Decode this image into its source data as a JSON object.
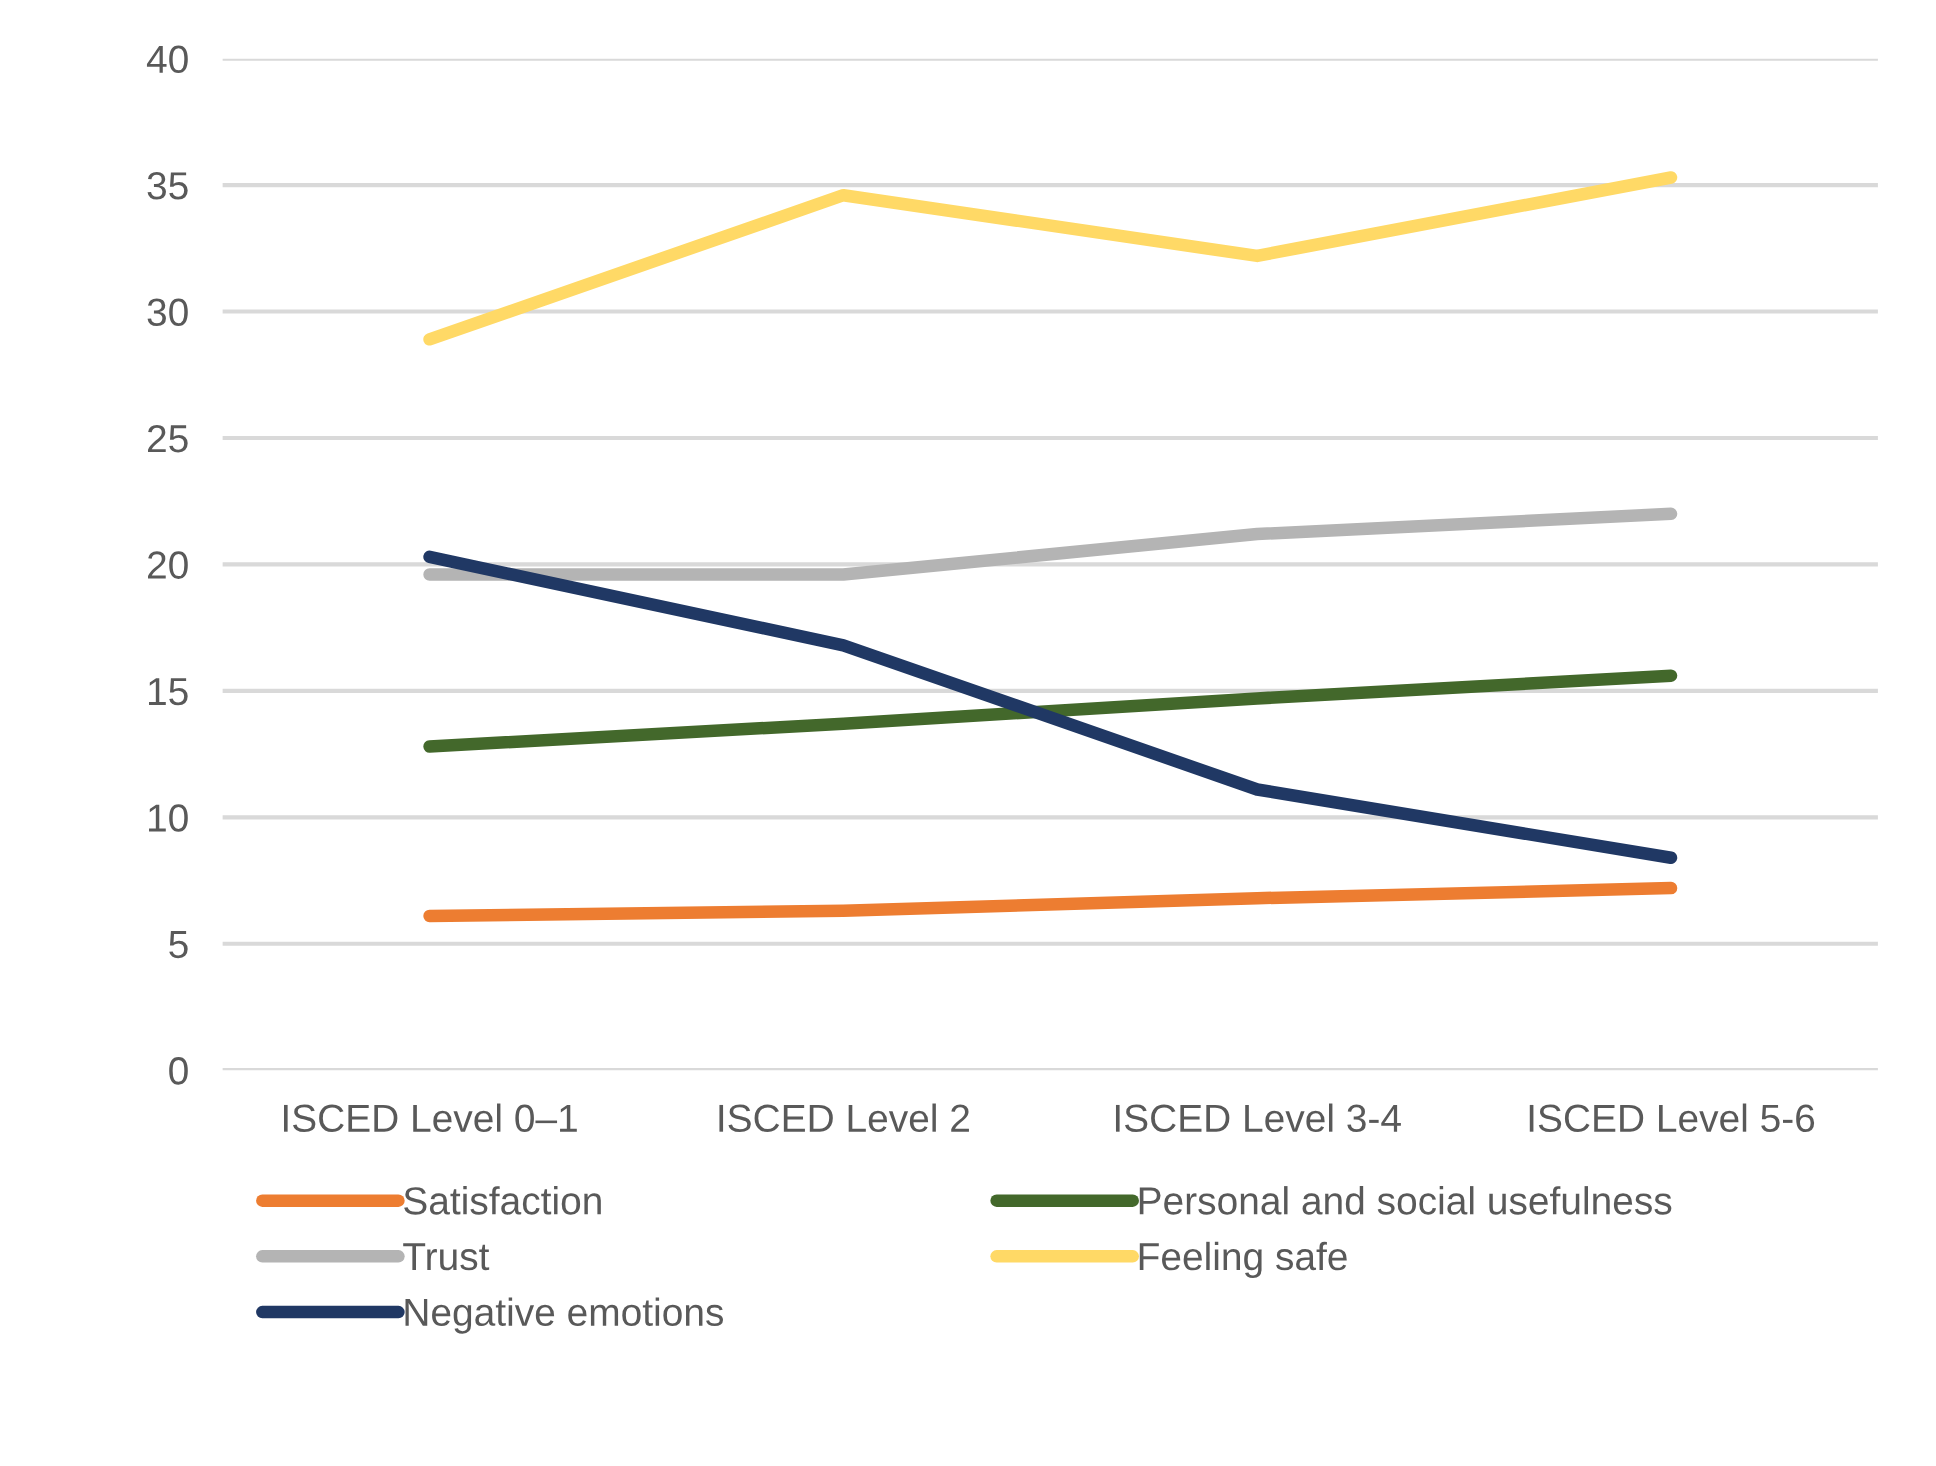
{
  "chart_data": {
    "type": "line",
    "categories": [
      "ISCED Level 0–1",
      "ISCED Level 2",
      "ISCED Level 3-4",
      "ISCED Level 5-6"
    ],
    "series": [
      {
        "name": "Satisfaction",
        "color": "#ed7d31",
        "values": [
          6.1,
          6.3,
          6.8,
          7.2
        ]
      },
      {
        "name": "Personal and social usefulness",
        "color": "#43682b",
        "values": [
          12.8,
          13.7,
          14.7,
          15.6
        ]
      },
      {
        "name": "Trust",
        "color": "#b4b4b4",
        "values": [
          19.6,
          19.6,
          21.2,
          22.0
        ]
      },
      {
        "name": "Feeling safe",
        "color": "#ffd966",
        "values": [
          28.9,
          34.6,
          32.2,
          35.3
        ]
      },
      {
        "name": "Negative emotions",
        "color": "#203864",
        "values": [
          20.3,
          16.8,
          11.1,
          8.4
        ]
      }
    ],
    "ylim": [
      0,
      40
    ],
    "yticks": [
      0,
      5,
      10,
      15,
      20,
      25,
      30,
      35,
      40
    ],
    "grid": "y",
    "legend": "bottom",
    "marker": "none",
    "line_style": "solid"
  }
}
